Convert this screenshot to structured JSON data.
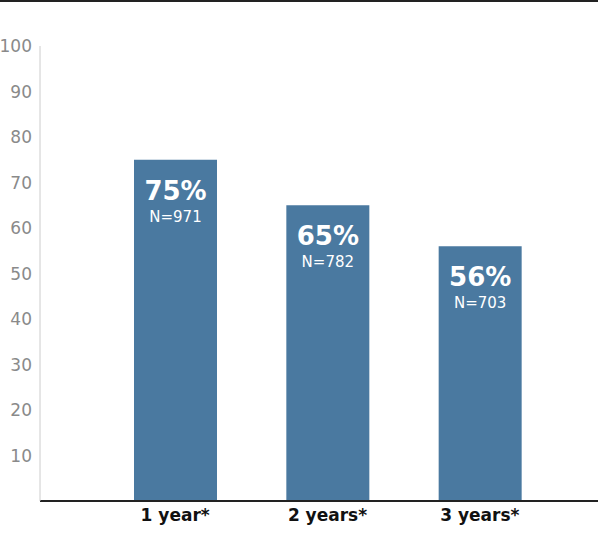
{
  "chart_data": {
    "type": "bar",
    "categories": [
      "1 year*",
      "2 years*",
      "3 years*"
    ],
    "values": [
      75,
      65,
      56
    ],
    "value_labels": [
      "75%",
      "65%",
      "56%"
    ],
    "n_labels": [
      "N=971",
      "N=782",
      "N=703"
    ],
    "color": "#4a79a0",
    "ylim": [
      0,
      100
    ],
    "yticks": [
      10,
      20,
      30,
      40,
      50,
      60,
      70,
      80,
      90,
      100
    ],
    "grid": false,
    "data_labels": true
  }
}
